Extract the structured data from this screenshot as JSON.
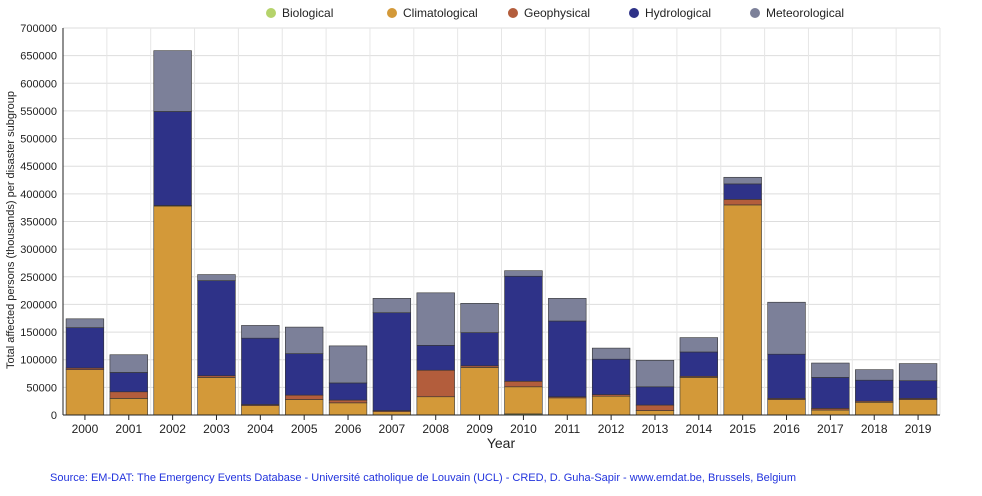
{
  "chart_data": {
    "type": "bar",
    "stacked": true,
    "xlabel": "Year",
    "ylabel": "Total affected persons (thousands) per  disaster subgroup",
    "ylim": [
      0,
      700000
    ],
    "yticks": [
      0,
      50000,
      100000,
      150000,
      200000,
      250000,
      300000,
      350000,
      400000,
      450000,
      500000,
      550000,
      600000,
      650000,
      700000
    ],
    "grid": true,
    "legend_position": "top",
    "categories": [
      "2000",
      "2001",
      "2002",
      "2003",
      "2004",
      "2005",
      "2006",
      "2007",
      "2008",
      "2009",
      "2010",
      "2011",
      "2012",
      "2013",
      "2014",
      "2015",
      "2016",
      "2017",
      "2018",
      "2019"
    ],
    "series": [
      {
        "name": "Biological",
        "color": "#b5d36b",
        "values": [
          0,
          0,
          0,
          0,
          0,
          0,
          0,
          0,
          0,
          0,
          2000,
          0,
          0,
          0,
          0,
          0,
          0,
          0,
          0,
          0
        ]
      },
      {
        "name": "Climatological",
        "color": "#d39939",
        "values": [
          82000,
          30000,
          378000,
          68000,
          17000,
          28000,
          22000,
          6000,
          33000,
          86000,
          49000,
          31000,
          34000,
          8000,
          68000,
          380000,
          28000,
          9000,
          23000,
          28000
        ]
      },
      {
        "name": "Geophysical",
        "color": "#b35d3c",
        "values": [
          3000,
          12000,
          1000,
          3000,
          2000,
          8000,
          5000,
          2000,
          48000,
          3000,
          10000,
          2000,
          3000,
          10000,
          2000,
          10000,
          2000,
          3000,
          2000,
          2000
        ]
      },
      {
        "name": "Hydrological",
        "color": "#2e3288",
        "values": [
          73000,
          35000,
          170000,
          172000,
          120000,
          75000,
          31000,
          177000,
          45000,
          60000,
          190000,
          137000,
          64000,
          33000,
          44000,
          28000,
          80000,
          56000,
          38000,
          32000
        ]
      },
      {
        "name": "Meteorological",
        "color": "#7c8099",
        "values": [
          16000,
          32000,
          110000,
          11000,
          23000,
          48000,
          67000,
          26000,
          95000,
          53000,
          10000,
          41000,
          20000,
          48000,
          26000,
          12000,
          94000,
          26000,
          19000,
          31000
        ]
      }
    ]
  },
  "source_text": "Source: EM-DAT: The Emergency Events Database - Université catholique de Louvain (UCL) - CRED, D. Guha-Sapir - www.emdat.be, Brussels, Belgium"
}
